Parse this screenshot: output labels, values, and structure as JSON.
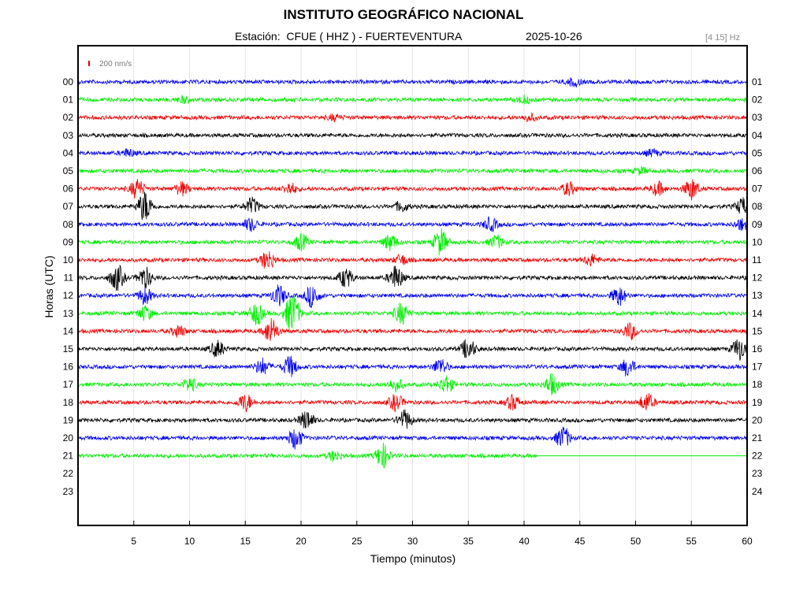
{
  "header": {
    "title": "INSTITUTO GEOGRÁFICO NACIONAL",
    "station_line": "Estación:  CFUE ( HHZ ) - FUERTEVENTURA",
    "date": "2025-10-26",
    "frequency_band": "[4 15] Hz",
    "scale_label": "200 nm/s"
  },
  "colors": {
    "scale_bar": "#e00000",
    "trace_cycle": [
      "#0000ee",
      "#00ee00",
      "#ee0000",
      "#000000"
    ],
    "grid": "#e6e6e6"
  },
  "chart_data": {
    "type": "line",
    "title": "INSTITUTO GEOGRÁFICO NACIONAL",
    "xlabel": "Tiempo (minutos)",
    "ylabel": "Horas (UTC)",
    "xlim": [
      0,
      60
    ],
    "x_ticks": [
      5,
      10,
      15,
      20,
      25,
      30,
      35,
      40,
      45,
      50,
      55,
      60
    ],
    "left_hour_labels": [
      "00",
      "01",
      "02",
      "03",
      "04",
      "05",
      "06",
      "07",
      "08",
      "09",
      "10",
      "11",
      "12",
      "13",
      "14",
      "15",
      "16",
      "17",
      "18",
      "19",
      "20",
      "21",
      "22",
      "23"
    ],
    "right_hour_labels": [
      "01",
      "02",
      "03",
      "04",
      "05",
      "06",
      "07",
      "08",
      "09",
      "10",
      "11",
      "12",
      "13",
      "14",
      "15",
      "16",
      "17",
      "18",
      "19",
      "20",
      "21",
      "22",
      "23",
      "24"
    ],
    "grid": true,
    "series": [
      {
        "hour": 0,
        "color": "blue",
        "end_minute": 60,
        "events": [
          [
            44.5,
            1.0
          ]
        ]
      },
      {
        "hour": 1,
        "color": "green",
        "end_minute": 60,
        "events": [
          [
            40,
            0.9
          ],
          [
            9.5,
            0.7
          ]
        ]
      },
      {
        "hour": 2,
        "color": "red",
        "end_minute": 60,
        "events": [
          [
            23,
            0.7
          ],
          [
            40.5,
            0.8
          ]
        ]
      },
      {
        "hour": 3,
        "color": "black",
        "end_minute": 60,
        "events": []
      },
      {
        "hour": 4,
        "color": "blue",
        "end_minute": 60,
        "events": [
          [
            4.5,
            0.9
          ],
          [
            51.5,
            0.8
          ]
        ]
      },
      {
        "hour": 5,
        "color": "green",
        "end_minute": 60,
        "events": [
          [
            50.5,
            0.8
          ]
        ]
      },
      {
        "hour": 6,
        "color": "red",
        "end_minute": 60,
        "events": [
          [
            5.3,
            2.4
          ],
          [
            9.3,
            1.6
          ],
          [
            19,
            1.4
          ],
          [
            44,
            1.6
          ],
          [
            52,
            1.6
          ],
          [
            55,
            2.6
          ]
        ]
      },
      {
        "hour": 7,
        "color": "black",
        "end_minute": 60,
        "events": [
          [
            6,
            3.8
          ],
          [
            15.6,
            2.0
          ],
          [
            29,
            1.2
          ],
          [
            59.6,
            2.0
          ]
        ]
      },
      {
        "hour": 8,
        "color": "blue",
        "end_minute": 60,
        "events": [
          [
            15.5,
            1.6
          ],
          [
            37,
            1.6
          ],
          [
            59.5,
            1.4
          ]
        ]
      },
      {
        "hour": 9,
        "color": "green",
        "end_minute": 60,
        "events": [
          [
            20,
            2.0
          ],
          [
            28,
            2.0
          ],
          [
            32.5,
            3.2
          ],
          [
            37.5,
            1.6
          ]
        ]
      },
      {
        "hour": 10,
        "color": "red",
        "end_minute": 60,
        "events": [
          [
            17,
            2.4
          ],
          [
            29,
            1.2
          ],
          [
            46,
            1.4
          ]
        ]
      },
      {
        "hour": 11,
        "color": "black",
        "end_minute": 60,
        "events": [
          [
            3.5,
            3.2
          ],
          [
            6,
            2.6
          ],
          [
            24,
            2.4
          ],
          [
            28.5,
            3.0
          ]
        ]
      },
      {
        "hour": 12,
        "color": "blue",
        "end_minute": 60,
        "events": [
          [
            6,
            2.0
          ],
          [
            18,
            2.6
          ],
          [
            21,
            2.8
          ],
          [
            48.5,
            2.4
          ]
        ]
      },
      {
        "hour": 13,
        "color": "green",
        "end_minute": 60,
        "events": [
          [
            16,
            2.8
          ],
          [
            19.2,
            5.2
          ],
          [
            29,
            2.6
          ],
          [
            6,
            1.8
          ]
        ]
      },
      {
        "hour": 14,
        "color": "red",
        "end_minute": 60,
        "events": [
          [
            17.3,
            3.2
          ],
          [
            9,
            1.4
          ],
          [
            49.5,
            2.0
          ]
        ]
      },
      {
        "hour": 15,
        "color": "black",
        "end_minute": 60,
        "events": [
          [
            12.5,
            2.0
          ],
          [
            35,
            2.6
          ],
          [
            59.3,
            2.8
          ]
        ]
      },
      {
        "hour": 16,
        "color": "blue",
        "end_minute": 60,
        "events": [
          [
            16.5,
            2.0
          ],
          [
            19,
            2.6
          ],
          [
            32.5,
            2.0
          ],
          [
            49.3,
            2.2
          ]
        ]
      },
      {
        "hour": 17,
        "color": "green",
        "end_minute": 60,
        "events": [
          [
            10,
            1.6
          ],
          [
            28.5,
            1.6
          ],
          [
            33,
            2.2
          ],
          [
            42.5,
            2.6
          ]
        ]
      },
      {
        "hour": 18,
        "color": "red",
        "end_minute": 60,
        "events": [
          [
            15,
            2.2
          ],
          [
            28.5,
            2.0
          ],
          [
            39,
            1.8
          ],
          [
            51,
            2.2
          ]
        ]
      },
      {
        "hour": 19,
        "color": "black",
        "end_minute": 60,
        "events": [
          [
            20.5,
            2.4
          ],
          [
            29.3,
            2.4
          ]
        ]
      },
      {
        "hour": 20,
        "color": "blue",
        "end_minute": 60,
        "events": [
          [
            19.5,
            2.6
          ],
          [
            43.5,
            2.8
          ]
        ]
      },
      {
        "hour": 21,
        "color": "green",
        "end_minute": 41.2,
        "events": [
          [
            27.3,
            3.0
          ],
          [
            23,
            1.2
          ]
        ]
      }
    ]
  }
}
